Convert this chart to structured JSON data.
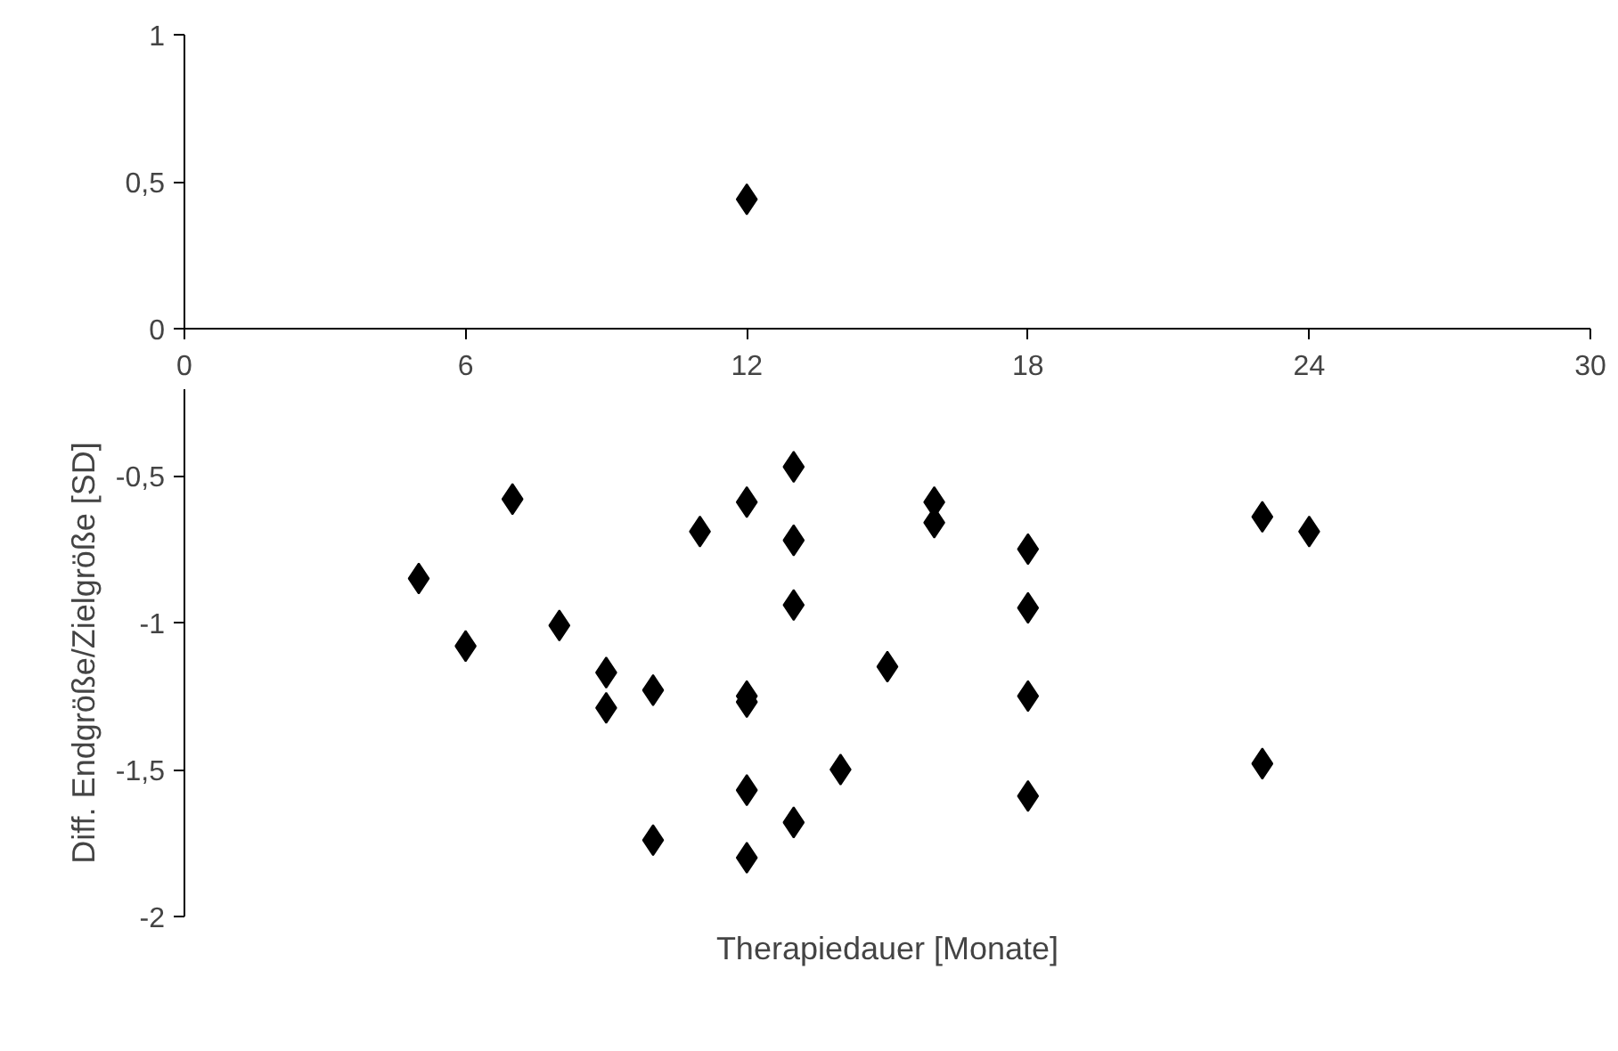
{
  "chart_data": {
    "type": "scatter",
    "xlabel": "Therapiedauer [Monate]",
    "ylabel": "Diff. Endgröße/Zielgröße [SD]",
    "x": [
      5,
      6,
      7,
      8,
      9,
      9,
      10,
      10,
      11,
      12,
      12,
      12,
      12,
      12,
      12,
      13,
      13,
      13,
      13,
      14,
      15,
      16,
      16,
      18,
      18,
      18,
      18,
      23,
      23,
      24
    ],
    "series": [
      {
        "color": "#000000",
        "values": [
          -0.85,
          -1.08,
          -0.58,
          -1.01,
          -1.17,
          -1.29,
          -1.23,
          -1.74,
          -0.69,
          0.44,
          -0.59,
          -1.25,
          -1.27,
          -1.57,
          -1.8,
          -0.47,
          -0.72,
          -0.94,
          -1.68,
          -1.5,
          -1.15,
          -0.59,
          -0.66,
          -0.75,
          -0.95,
          -1.25,
          -1.59,
          -0.64,
          -1.48,
          -0.69
        ]
      }
    ],
    "xlim": [
      0,
      30
    ],
    "ylim": [
      -2,
      1
    ],
    "xticks": [
      0,
      6,
      12,
      18,
      24,
      30
    ],
    "yticks": [
      {
        "value": -2,
        "label": "-2"
      },
      {
        "value": -1.5,
        "label": "-1,5"
      },
      {
        "value": -1,
        "label": "-1"
      },
      {
        "value": -0.5,
        "label": "-0,5"
      },
      {
        "value": 0,
        "label": "0"
      },
      {
        "value": 0.5,
        "label": "0,5"
      },
      {
        "value": 1,
        "label": "1"
      }
    ],
    "marker": "diamond",
    "grid": false
  }
}
